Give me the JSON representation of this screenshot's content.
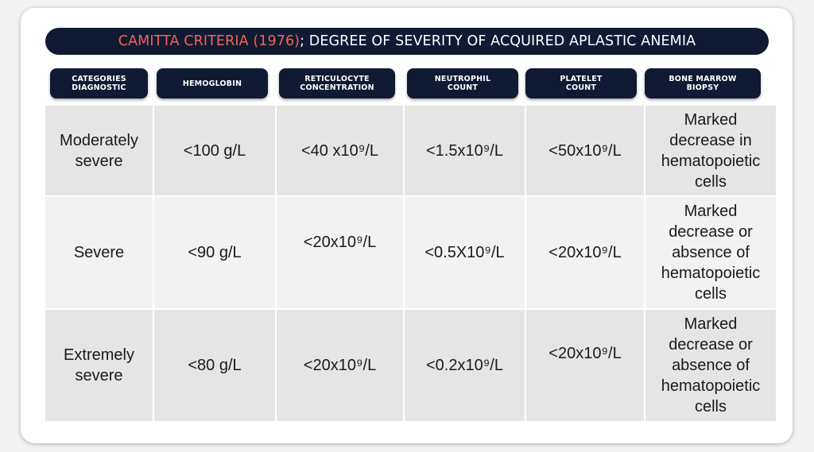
{
  "title": {
    "accent_text": "CAMITTA CRITERIA (1976)",
    "rest_text": "; DEGREE OF SEVERITY OF ACQUIRED APLASTIC ANEMIA",
    "accent_color": "#f26353",
    "bar_color": "#101a33"
  },
  "headers": [
    "CATEGORIES\nDIAGNOSTIC",
    "HEMOGLOBIN",
    "RETICULOCYTE\nCONCENTRATION",
    "NEUTROPHIL\nCOUNT",
    "PLATELET\nCOUNT",
    "BONE MARROW\nBIOPSY"
  ],
  "rows": [
    {
      "category": "Moderately\nsevere",
      "hemoglobin": "<100 g/L",
      "reticulocyte": "<40 x10⁹/L",
      "neutrophil": "<1.5x10⁹/L",
      "platelet": "<50x10⁹/L",
      "biopsy": "Marked\ndecrease in\nhematopoietic\ncells"
    },
    {
      "category": "Severe",
      "hemoglobin": "<90 g/L",
      "reticulocyte": "<20x10⁹/L",
      "neutrophil": "<0.5X10⁹/L",
      "platelet": "<20x10⁹/L",
      "biopsy": "Marked\ndecrease or\nabsence of\nhematopoietic\ncells"
    },
    {
      "category": "Extremely\nsevere",
      "hemoglobin": "<80 g/L",
      "reticulocyte": "<20x10⁹/L",
      "neutrophil": "<0.2x10⁹/L",
      "platelet": "<20x10⁹/L",
      "biopsy": "Marked\ndecrease or\nabsence of\nhematopoietic\ncells"
    }
  ]
}
